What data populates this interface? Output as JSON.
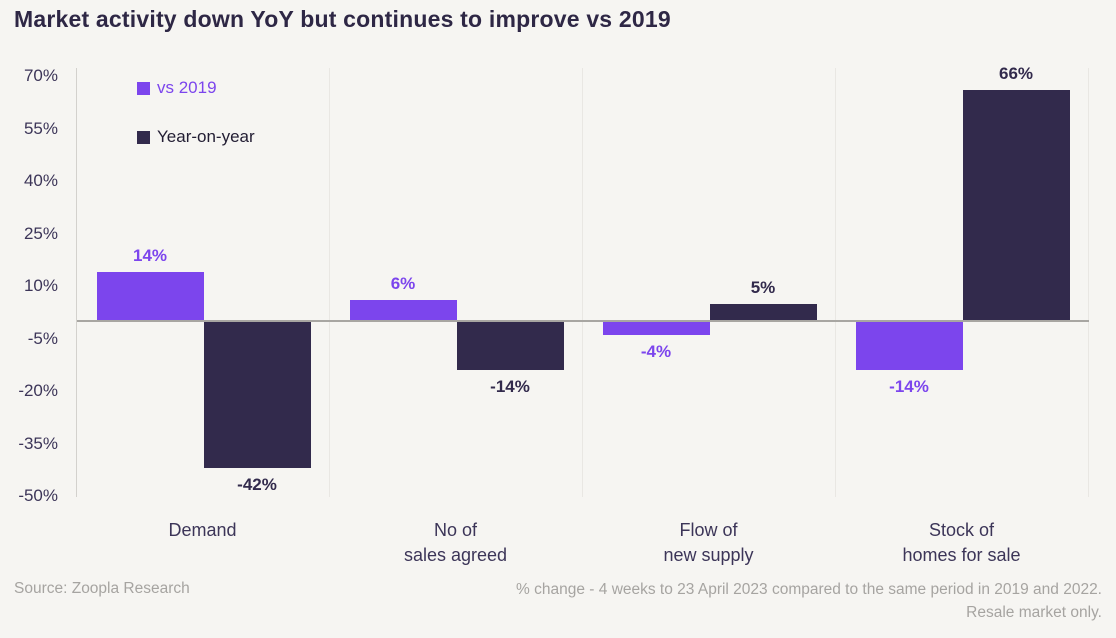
{
  "title": "Market activity down YoY but continues to improve vs 2019",
  "colors": {
    "background": "#F6F5F2",
    "purple": "#7C45ED",
    "dark_navy": "#322A4C",
    "title_text": "#2E2745",
    "axis_text": "#3C3558",
    "legend_dark_text": "#221D33",
    "axis_line": "#D3D1CD",
    "grid_line": "#E9E7E3",
    "zero_line": "#A8A6A2",
    "footer_text": "#A6A4A1"
  },
  "chart_data": {
    "type": "bar",
    "title": "Market activity down YoY but continues to improve vs 2019",
    "categories": [
      "Demand",
      "No of sales agreed",
      "Flow of new supply",
      "Stock of homes for sale"
    ],
    "category_lines": [
      [
        "Demand"
      ],
      [
        "No of",
        "sales agreed"
      ],
      [
        "Flow of",
        "new supply"
      ],
      [
        "Stock of",
        "homes for sale"
      ]
    ],
    "series": [
      {
        "name": "vs 2019",
        "color": "#7C45ED",
        "values": [
          14,
          6,
          -4,
          -14
        ],
        "labels": [
          "14%",
          "6%",
          "-4%",
          "-14%"
        ]
      },
      {
        "name": "Year-on-year",
        "color": "#322A4C",
        "values": [
          -42,
          -14,
          5,
          66
        ],
        "labels": [
          "-42%",
          "-14%",
          "5%",
          "66%"
        ]
      }
    ],
    "ylabel": "",
    "xlabel": "",
    "yticks": [
      70,
      55,
      40,
      25,
      10,
      -5,
      -20,
      -35,
      -50
    ],
    "ytick_labels": [
      "70%",
      "55%",
      "40%",
      "25%",
      "10%",
      "-5%",
      "-20%",
      "-35%",
      "-50%"
    ],
    "ylim": [
      -50,
      70
    ],
    "grid": "vertical-group-separators",
    "legend_position": "top-left"
  },
  "footer": {
    "source": "Source: Zoopla Research",
    "note_line1": "% change - 4 weeks to 23 April 2023 compared to the same period in 2019 and 2022.",
    "note_line2": "Resale market only."
  }
}
